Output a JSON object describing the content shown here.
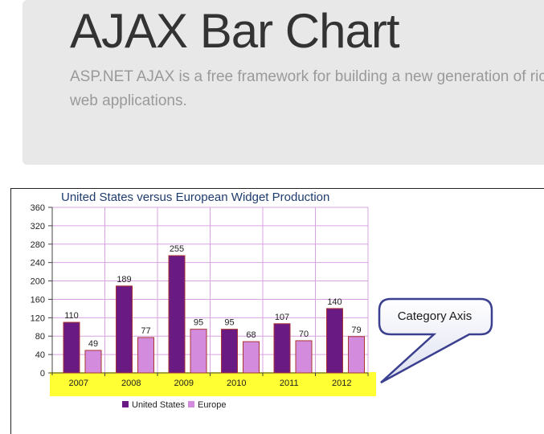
{
  "hero": {
    "title": "AJAX Bar Chart",
    "lead_line1": "ASP.NET AJAX is a free framework for building a new generation of rich",
    "lead_line2": "web applications."
  },
  "callout": {
    "label": "Category Axis"
  },
  "colors": {
    "us": "#6a1a83",
    "europe": "#d38cdd",
    "grid": "#d9a3e3",
    "highlight": "#ffff33"
  },
  "chart_data": {
    "type": "bar",
    "title": "United States versus European Widget Production",
    "categories": [
      "2007",
      "2008",
      "2009",
      "2010",
      "2011",
      "2012"
    ],
    "series": [
      {
        "name": "United States",
        "values": [
          110,
          189,
          255,
          95,
          107,
          140
        ]
      },
      {
        "name": "Europe",
        "values": [
          49,
          77,
          95,
          68,
          70,
          79
        ]
      }
    ],
    "ylim": [
      0,
      360
    ],
    "yticks": [
      0,
      40,
      80,
      120,
      160,
      200,
      240,
      280,
      320,
      360
    ],
    "grid": true,
    "legend": "bottom"
  }
}
